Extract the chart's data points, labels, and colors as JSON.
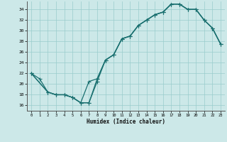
{
  "xlabel": "Humidex (Indice chaleur)",
  "bg_color": "#cce8e8",
  "line_color": "#1a7070",
  "grid_color": "#99cccc",
  "xlim": [
    -0.5,
    23.5
  ],
  "ylim": [
    15.0,
    35.5
  ],
  "xticks": [
    0,
    1,
    2,
    3,
    4,
    5,
    6,
    7,
    8,
    9,
    10,
    11,
    12,
    13,
    14,
    15,
    16,
    17,
    18,
    19,
    20,
    21,
    22,
    23
  ],
  "yticks": [
    16,
    18,
    20,
    22,
    24,
    26,
    28,
    30,
    32,
    34
  ],
  "curve1_x": [
    0,
    1,
    2,
    3,
    4,
    5,
    6,
    7,
    8,
    9,
    10,
    11,
    12,
    13,
    14,
    15,
    16,
    17,
    18,
    19,
    20,
    21,
    22,
    23
  ],
  "curve1_y": [
    22,
    21,
    18.5,
    18,
    18,
    17.5,
    16.5,
    16.5,
    20.5,
    24.5,
    25.5,
    28.5,
    29,
    31,
    32,
    33,
    33.5,
    35,
    35,
    34,
    34,
    32,
    30.5,
    27.5
  ],
  "curve2_x": [
    0,
    2,
    3,
    4,
    5,
    6,
    7,
    8,
    9,
    10,
    11,
    12,
    13,
    14,
    15,
    16,
    17,
    18,
    19,
    20,
    21,
    22,
    23
  ],
  "curve2_y": [
    22,
    18.5,
    18,
    18,
    17.5,
    16.5,
    20.5,
    21,
    24.5,
    25.5,
    28.5,
    29,
    31,
    32,
    33,
    33.5,
    35,
    35,
    34,
    34,
    32,
    30.5,
    27.5
  ],
  "curve3_x": [
    0,
    2,
    3,
    4,
    5,
    6,
    7,
    8,
    9,
    10,
    11,
    12,
    13,
    14,
    15,
    16,
    17,
    18,
    19,
    20,
    21,
    22,
    23
  ],
  "curve3_y": [
    22,
    18.5,
    18,
    18,
    17.5,
    16.5,
    16.5,
    21,
    24.5,
    25.5,
    28.5,
    29,
    31,
    32,
    33,
    33.5,
    35,
    35,
    34,
    34,
    32,
    30.5,
    27.5
  ]
}
